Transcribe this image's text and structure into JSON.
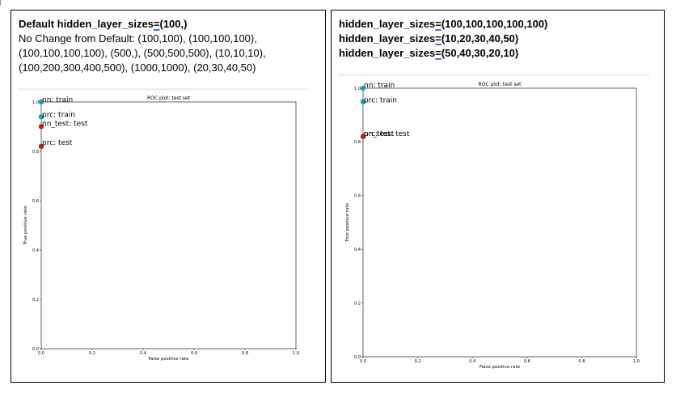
{
  "left_panel": {
    "heading_line1_prefix": "Default hidden_layer_sizes",
    "heading_line1_eq": "=",
    "heading_line1_suffix": "(100,)",
    "text_line2": "No Change from Default: (100,100), (100,100,100),",
    "text_line3": "(100,100,100,100), (500,), (500,500,500), (10,10,10),",
    "text_line4": "(100,200,300,400,500), (1000,1000), (20,30,40,50)",
    "chart": {
      "title": "ROC plot: test set",
      "xlabel": "False positive rate",
      "ylabel": "True positive rate",
      "xticks": [
        "0.0",
        "0.2",
        "0.4",
        "0.6",
        "0.8",
        "1.0"
      ],
      "yticks": [
        "0.0",
        "0.2",
        "0.4",
        "0.6",
        "0.8",
        "1.0"
      ],
      "points": [
        {
          "label": "nn: train",
          "x": 0.0,
          "y": 1.0,
          "color": "#17a2b8"
        },
        {
          "label": "nn_test: test",
          "x": 0.0,
          "y": 0.9,
          "color": "#b22222"
        },
        {
          "label": "prc: train",
          "x": 0.0,
          "y": 0.94,
          "color": "#17a2b8"
        },
        {
          "label": "prc: test",
          "x": 0.0,
          "y": 0.82,
          "color": "#b22222"
        }
      ]
    }
  },
  "right_panel": {
    "line1_prefix": "hidden_layer_sizes",
    "line1_eq": "=",
    "line1_suffix": "(100,100,100,100,100)",
    "line2_prefix": "hidden_layer_sizes",
    "line2_eq": "=",
    "line2_suffix": "(10,20,30,40,50)",
    "line3_prefix": "hidden_layer_sizes",
    "line3_eq": "=",
    "line3_suffix": "(50,40,30,20,10)",
    "chart": {
      "title": "ROC plot: test set",
      "xlabel": "False positive rate",
      "ylabel": "True positive rate",
      "xticks": [
        "0.0",
        "0.2",
        "0.4",
        "0.6",
        "0.8",
        "1.0"
      ],
      "yticks": [
        "0.0",
        "0.2",
        "0.4",
        "0.6",
        "0.8",
        "1.0"
      ],
      "points": [
        {
          "label": "nn: train",
          "x": 0.0,
          "y": 1.0,
          "color": "#17a2b8"
        },
        {
          "label": "prc: train",
          "x": 0.0,
          "y": 0.95,
          "color": "#17a2b8"
        },
        {
          "label": "nn_test: test",
          "x": 0.0,
          "y": 0.82,
          "color": "#b22222"
        },
        {
          "label": "prc: test",
          "x": 0.0,
          "y": 0.82,
          "color": "#b22222"
        }
      ]
    }
  },
  "chart_data": [
    {
      "type": "scatter",
      "title": "ROC plot: test set",
      "xlabel": "False positive rate",
      "ylabel": "True positive rate",
      "xlim": [
        0,
        1
      ],
      "ylim": [
        0,
        1
      ],
      "series": [
        {
          "name": "nn: train",
          "x": [
            0.0
          ],
          "y": [
            1.0
          ]
        },
        {
          "name": "nn_test: test",
          "x": [
            0.0
          ],
          "y": [
            0.9
          ]
        },
        {
          "name": "prc: train",
          "x": [
            0.0
          ],
          "y": [
            0.94
          ]
        },
        {
          "name": "prc: test",
          "x": [
            0.0
          ],
          "y": [
            0.82
          ]
        }
      ]
    },
    {
      "type": "scatter",
      "title": "ROC plot: test set",
      "xlabel": "False positive rate",
      "ylabel": "True positive rate",
      "xlim": [
        0,
        1
      ],
      "ylim": [
        0,
        1
      ],
      "series": [
        {
          "name": "nn: train",
          "x": [
            0.0
          ],
          "y": [
            1.0
          ]
        },
        {
          "name": "prc: train",
          "x": [
            0.0
          ],
          "y": [
            0.95
          ]
        },
        {
          "name": "nn_test: test",
          "x": [
            0.0
          ],
          "y": [
            0.82
          ]
        },
        {
          "name": "prc: test",
          "x": [
            0.0
          ],
          "y": [
            0.82
          ]
        }
      ]
    }
  ]
}
